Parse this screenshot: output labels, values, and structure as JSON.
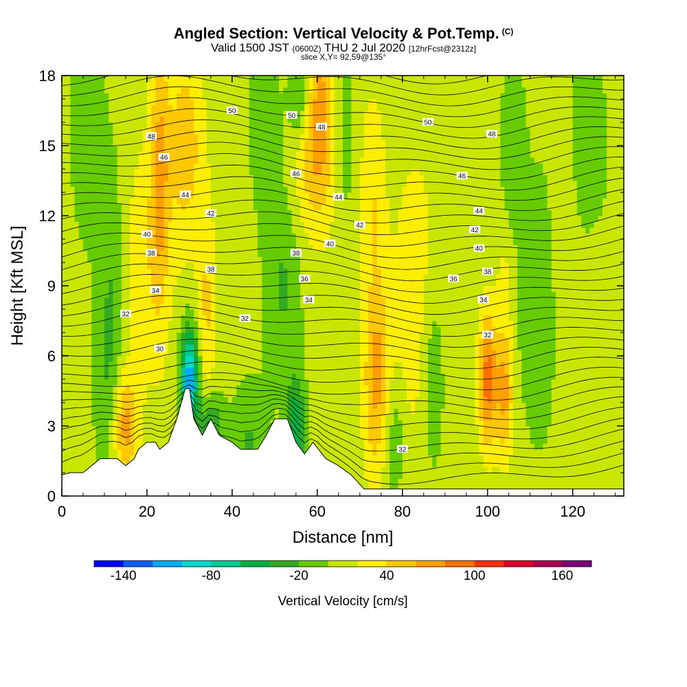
{
  "chart_data": {
    "type": "heatmap",
    "title": "Angled Section: Vertical Velocity & Pot.Temp.",
    "title_mark": "(C)",
    "subtitle_parts": {
      "a": "Valid 1500 JST",
      "b": "(0600Z)",
      "c": "THU 2 Jul 2020",
      "d": "[12hrFcst@2312z]"
    },
    "slice_label": "slice X,Y= 92,59@135°",
    "xlabel": "Distance [nm]",
    "ylabel": "Height [Kft MSL]",
    "xlim": [
      0,
      132
    ],
    "ylim": [
      0,
      18
    ],
    "x_ticks": [
      "0",
      "20",
      "40",
      "60",
      "80",
      "100",
      "120"
    ],
    "y_ticks": [
      "0",
      "3",
      "6",
      "9",
      "12",
      "15",
      "18"
    ],
    "colorbar": {
      "label": "Vertical Velocity [cm/s]",
      "tick_labels": [
        "-140",
        "-80",
        "-20",
        "40",
        "100",
        "160"
      ],
      "levels": [
        -160,
        -140,
        -120,
        -100,
        -80,
        -60,
        -40,
        -20,
        0,
        20,
        40,
        60,
        80,
        100,
        120,
        140,
        160,
        180
      ],
      "colors": [
        "#0000ff",
        "#0a5cff",
        "#00aaff",
        "#00d8cc",
        "#00c890",
        "#00b040",
        "#33aa22",
        "#66cc00",
        "#c8e600",
        "#ffee00",
        "#ffc800",
        "#ffa000",
        "#ff7000",
        "#ff3000",
        "#dd0028",
        "#aa0050",
        "#7a007a"
      ]
    },
    "contour_labels": [
      {
        "text": "50",
        "x": 40,
        "y": 16.5
      },
      {
        "text": "50",
        "x": 54,
        "y": 16.3
      },
      {
        "text": "50",
        "x": 86,
        "y": 16.0
      },
      {
        "text": "48",
        "x": 21,
        "y": 15.4
      },
      {
        "text": "48",
        "x": 61,
        "y": 15.8
      },
      {
        "text": "48",
        "x": 101,
        "y": 15.5
      },
      {
        "text": "46",
        "x": 24,
        "y": 14.5
      },
      {
        "text": "46",
        "x": 55,
        "y": 13.8
      },
      {
        "text": "46",
        "x": 94,
        "y": 13.7
      },
      {
        "text": "44",
        "x": 29,
        "y": 12.9
      },
      {
        "text": "44",
        "x": 65,
        "y": 12.8
      },
      {
        "text": "44",
        "x": 98,
        "y": 12.2
      },
      {
        "text": "42",
        "x": 35,
        "y": 12.1
      },
      {
        "text": "42",
        "x": 70,
        "y": 11.6
      },
      {
        "text": "42",
        "x": 97,
        "y": 11.4
      },
      {
        "text": "40",
        "x": 20,
        "y": 11.2
      },
      {
        "text": "40",
        "x": 63,
        "y": 10.8
      },
      {
        "text": "40",
        "x": 98,
        "y": 10.6
      },
      {
        "text": "38",
        "x": 21,
        "y": 10.4
      },
      {
        "text": "38",
        "x": 35,
        "y": 9.7
      },
      {
        "text": "38",
        "x": 55,
        "y": 10.4
      },
      {
        "text": "38",
        "x": 100,
        "y": 9.6
      },
      {
        "text": "36",
        "x": 57,
        "y": 9.3
      },
      {
        "text": "36",
        "x": 92,
        "y": 9.3
      },
      {
        "text": "34",
        "x": 22,
        "y": 8.8
      },
      {
        "text": "34",
        "x": 58,
        "y": 8.4
      },
      {
        "text": "34",
        "x": 99,
        "y": 8.4
      },
      {
        "text": "32",
        "x": 15,
        "y": 7.8
      },
      {
        "text": "32",
        "x": 43,
        "y": 7.6
      },
      {
        "text": "32",
        "x": 100,
        "y": 6.9
      },
      {
        "text": "32",
        "x": 80,
        "y": 2.0
      },
      {
        "text": "30",
        "x": 23,
        "y": 6.3
      }
    ],
    "grid": false,
    "legend": "bottom"
  }
}
